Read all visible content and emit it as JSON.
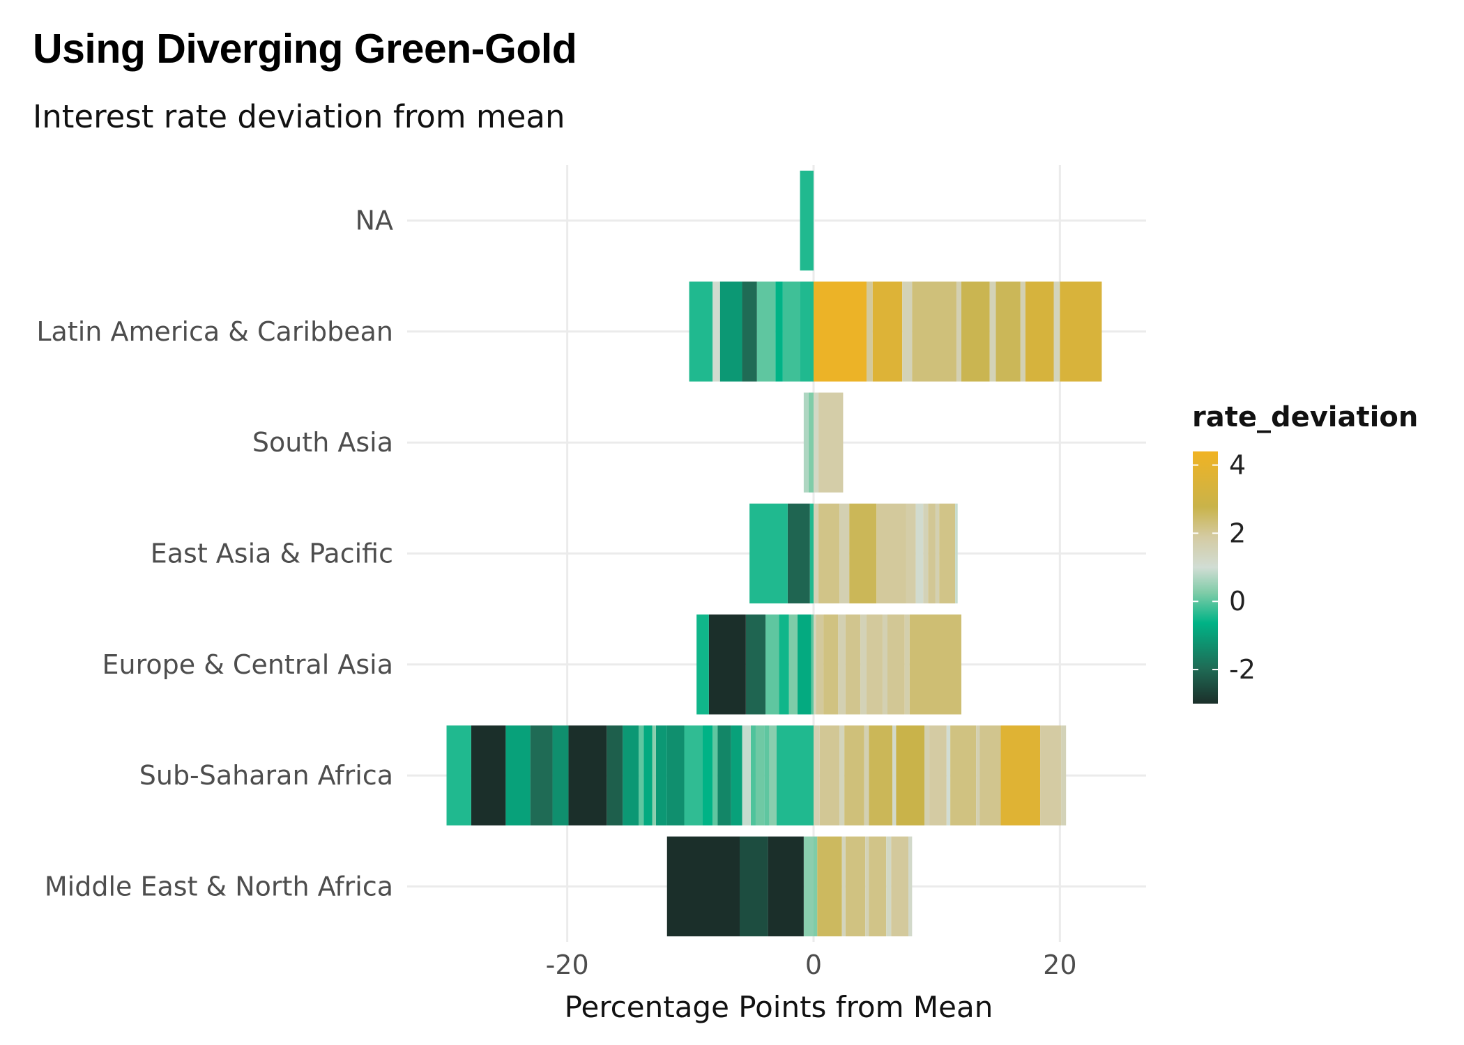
{
  "chart_data": {
    "type": "bar",
    "orientation": "horizontal-diverging-stacked",
    "title": "Using Diverging Green-Gold",
    "subtitle": "Interest rate deviation from mean",
    "xlabel": "Percentage Points from Mean",
    "ylabel": "",
    "xlim": [
      -33,
      27
    ],
    "xticks": [
      -20,
      0,
      20
    ],
    "xtick_labels": [
      "-20",
      "0",
      "20"
    ],
    "grid": true,
    "legend": {
      "title": "rate_deviation",
      "placement": "right",
      "range": [
        -3,
        4.4
      ],
      "ticks": [
        4,
        2,
        0,
        -2
      ],
      "tick_labels": [
        "4",
        "2",
        "0",
        "-2"
      ],
      "colors": [
        "#1b2f2a",
        "#00b386",
        "#d1ddd4",
        "#c9b34a",
        "#f0b323"
      ]
    },
    "categories": [
      "NA",
      "Latin America & Caribbean",
      "South Asia",
      "East Asia & Pacific",
      "Europe & Central Asia",
      "Sub-Saharan Africa",
      "Middle East & North Africa"
    ],
    "segments": [
      [
        -1.1
      ],
      [
        -1.1,
        -1.4,
        -0.6,
        -1.5,
        -1.2,
        -1.8,
        -0.6,
        -1.9,
        4.3,
        0.5,
        2.4,
        0.8,
        3.6,
        0.4,
        2.3,
        0.5,
        2.0,
        0.4,
        2.3,
        0.5,
        3.4
      ],
      [
        -0.4,
        -0.4,
        0.4,
        2.0
      ],
      [
        -0.3,
        -1.8,
        -3.1,
        0.4,
        1.7,
        0.8,
        2.2,
        2.4,
        0.8,
        0.6,
        0.4,
        0.6,
        0.3,
        1.3,
        0.2
      ],
      [
        -0.2,
        -1.1,
        -0.7,
        -0.8,
        -1.1,
        -1.6,
        -3.0,
        -1.0,
        0.2,
        0.6,
        1.2,
        0.6,
        1.2,
        0.5,
        1.3,
        0.4,
        1.4,
        0.4,
        4.2
      ],
      [
        -3.0,
        -0.6,
        -0.4,
        -0.7,
        -0.4,
        -0.7,
        -0.9,
        -1.1,
        -0.4,
        -0.8,
        -1.5,
        -1.4,
        -0.9,
        -0.3,
        -0.7,
        -0.4,
        -1.3,
        -1.3,
        -3.1,
        -1.3,
        -1.8,
        -2.0,
        -2.8,
        -2.0,
        0.5,
        1.6,
        0.4,
        1.6,
        0.4,
        1.9,
        0.3,
        2.3,
        0.4,
        1.4,
        0.3,
        2.1,
        0.3,
        1.7,
        3.2,
        1.7,
        0.4
      ],
      [
        -0.8,
        -2.9,
        -2.3,
        -5.9,
        0.3,
        2.0,
        0.3,
        1.6,
        0.3,
        1.4,
        0.4,
        1.4,
        0.3
      ]
    ],
    "segment_deviation": [
      [
        -1.0
      ],
      [
        -1.0,
        -0.8,
        -1.2,
        -0.6,
        -2.0,
        -1.5,
        0.4,
        -1.0,
        4.2,
        1.4,
        3.5,
        0.9,
        1.9,
        1.0,
        2.5,
        0.9,
        2.4,
        1.0,
        3.2,
        0.8,
        3.3
      ],
      [
        -0.4,
        0.0,
        0.6,
        1.2
      ],
      [
        -1.0,
        -2.1,
        -1.0,
        0.9,
        1.7,
        1.0,
        2.4,
        1.4,
        1.2,
        0.4,
        0.9,
        1.5,
        1.0,
        1.7,
        0.2
      ],
      [
        -0.6,
        -1.3,
        -0.4,
        -1.1,
        -0.6,
        -2.1,
        -3.0,
        -1.1,
        0.8,
        1.4,
        1.8,
        1.0,
        1.6,
        0.9,
        1.4,
        1.0,
        1.5,
        1.1,
        2.0
      ],
      [
        -1.0,
        -0.3,
        -0.6,
        -0.5,
        -0.7,
        0.2,
        -1.4,
        -1.7,
        -0.6,
        -1.2,
        -0.9,
        -1.6,
        -1.5,
        -0.3,
        -1.3,
        -0.6,
        -1.5,
        -2.2,
        -3.0,
        -1.6,
        -2.0,
        -1.4,
        -3.0,
        -1.0,
        1.0,
        1.5,
        0.8,
        1.9,
        1.0,
        2.4,
        0.5,
        2.6,
        1.0,
        1.3,
        0.3,
        1.8,
        1.0,
        1.6,
        3.6,
        1.3,
        0.9
      ],
      [
        -0.3,
        -3.0,
        -2.5,
        -3.0,
        -0.4,
        2.3,
        0.8,
        1.8,
        0.9,
        1.7,
        0.6,
        1.4,
        0.5
      ]
    ]
  }
}
